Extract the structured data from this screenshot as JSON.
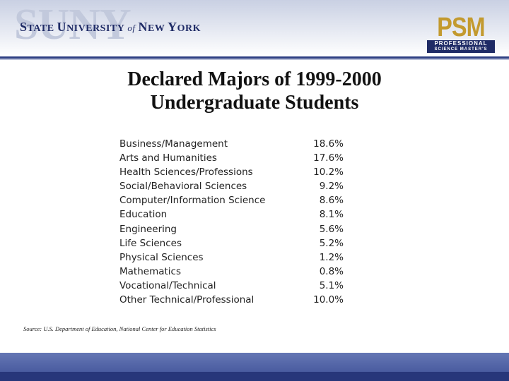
{
  "header": {
    "suny_watermark": "SUNY",
    "suny_state": "S",
    "suny_tate": "TATE ",
    "suny_u": "U",
    "suny_niversity": "NIVERSITY",
    "suny_of": "of",
    "suny_n": "N",
    "suny_ew": "EW ",
    "suny_y": "Y",
    "suny_ork": "ORK",
    "psm_big": "PSM",
    "psm_line1": "PROFESSIONAL",
    "psm_line2": "SCIENCE MASTER'S"
  },
  "title_line1": "Declared Majors of 1999-2000",
  "title_line2": "Undergraduate Students",
  "majors": [
    {
      "name": "Business/Management",
      "percent": "18.6%"
    },
    {
      "name": "Arts and Humanities",
      "percent": "17.6%"
    },
    {
      "name": "Health Sciences/Professions",
      "percent": "10.2%"
    },
    {
      "name": "Social/Behavioral Sciences",
      "percent": "9.2%"
    },
    {
      "name": "Computer/Information Science",
      "percent": "8.6%"
    },
    {
      "name": "Education",
      "percent": "8.1%"
    },
    {
      "name": "Engineering",
      "percent": "5.6%"
    },
    {
      "name": "Life Sciences",
      "percent": "5.2%"
    },
    {
      "name": "Physical Sciences",
      "percent": "1.2%"
    },
    {
      "name": "Mathematics",
      "percent": "0.8%"
    },
    {
      "name": "Vocational/Technical",
      "percent": "5.1%"
    },
    {
      "name": "Other Technical/Professional",
      "percent": "10.0%"
    }
  ],
  "source": "Source: U.S. Department of Education, National Center for Education Statistics",
  "colors": {
    "brand_navy": "#1f2b66",
    "psm_gold": "#c39a2f",
    "footer_blue": "#3d4f96"
  }
}
